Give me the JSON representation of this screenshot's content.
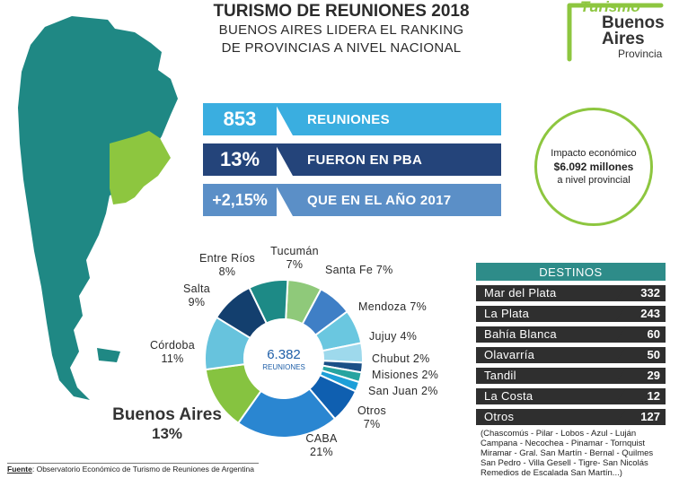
{
  "header": {
    "title": "TURISMO DE REUNIONES 2018",
    "subtitle_line1": "BUENOS AIRES LIDERA EL RANKING",
    "subtitle_line2": "DE PROVINCIAS A NIVEL NACIONAL"
  },
  "logo": {
    "line1": "Turismo",
    "line2": "Buenos",
    "line3": "Aires",
    "line4": "Provincia"
  },
  "stats": [
    {
      "value": "853",
      "label": "REUNIONES",
      "color": "#3aaee0"
    },
    {
      "value": "13%",
      "label": "FUERON EN PBA",
      "color": "#24447a"
    },
    {
      "value": "+2,15%",
      "label": "QUE EN EL AÑO 2017",
      "color": "#5b8fc7"
    }
  ],
  "impact": {
    "line1": "Impacto económico",
    "line2": "$6.092 millones",
    "line3": "a nivel provincial"
  },
  "donut": {
    "center_value": "6.382",
    "center_label": "REUNIONES",
    "slices": [
      {
        "label_name": "Tucumán",
        "label_pct": "7%",
        "value": 7,
        "color": "#8fc97a"
      },
      {
        "label_name": "Santa Fe",
        "label_pct": "7%",
        "value": 7,
        "color": "#3f7fc6"
      },
      {
        "label_name": "Mendoza",
        "label_pct": "7%",
        "value": 7,
        "color": "#6ac7e0"
      },
      {
        "label_name": "Jujuy",
        "label_pct": "4%",
        "value": 4,
        "color": "#9ed9ec"
      },
      {
        "label_name": "Chubut",
        "label_pct": "2%",
        "value": 2,
        "color": "#1a4f86"
      },
      {
        "label_name": "Misiones",
        "label_pct": "2%",
        "value": 2,
        "color": "#27a4a0"
      },
      {
        "label_name": "San Juan",
        "label_pct": "2%",
        "value": 2,
        "color": "#1c9fd8"
      },
      {
        "label_name": "Otros",
        "label_pct": "7%",
        "value": 7,
        "color": "#0f5fb0"
      },
      {
        "label_name": "CABA",
        "label_pct": "21%",
        "value": 21,
        "color": "#2a86d1"
      },
      {
        "label_name": "Buenos Aires",
        "label_pct": "13%",
        "value": 13,
        "color": "#86c340"
      },
      {
        "label_name": "Córdoba",
        "label_pct": "11%",
        "value": 11,
        "color": "#67c3dd"
      },
      {
        "label_name": "Salta",
        "label_pct": "9%",
        "value": 9,
        "color": "#133f6e"
      },
      {
        "label_name": "Entre Ríos",
        "label_pct": "8%",
        "value": 8,
        "color": "#1d8a86"
      }
    ]
  },
  "destinos": {
    "header": "DESTINOS",
    "rows": [
      {
        "name": "Mar del Plata",
        "value": "332"
      },
      {
        "name": "La Plata",
        "value": "243"
      },
      {
        "name": "Bahía Blanca",
        "value": "60"
      },
      {
        "name": "Olavarría",
        "value": "50"
      },
      {
        "name": "Tandil",
        "value": "29"
      },
      {
        "name": "La Costa",
        "value": "12"
      },
      {
        "name": "Otros",
        "value": "127"
      }
    ],
    "note_line1": "(Chascomús - Pilar - Lobos - Azul - Luján",
    "note_line2": "Campana - Necochea - Pinamar - Tornquist",
    "note_line3": "Miramar - Gral. San Martín - Bernal - Quilmes",
    "note_line4": "San Pedro - Villa Gesell - Tigre- San Nicolás",
    "note_line5": "Remedios de Escalada San Martín...)"
  },
  "source": {
    "label": "Fuente",
    "text": ": Observatorio Económico de Turismo de Reuniones de Argentina"
  },
  "colors": {
    "map_teal": "#1f8884",
    "map_green": "#8dc63f"
  }
}
